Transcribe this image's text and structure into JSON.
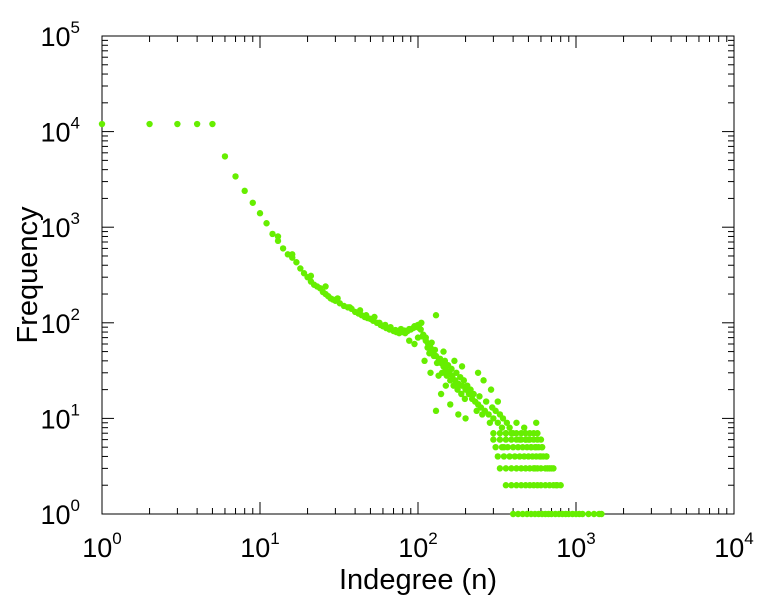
{
  "chart_data": {
    "type": "scatter",
    "title": "",
    "xlabel": "Indegree (n)",
    "ylabel": "Frequency",
    "xscale": "log",
    "yscale": "log",
    "xlim": [
      1,
      10000
    ],
    "ylim": [
      1,
      100000
    ],
    "x_ticks": [
      1,
      10,
      100,
      1000,
      10000
    ],
    "y_ticks": [
      1,
      10,
      100,
      1000,
      10000,
      100000
    ],
    "tick_base": "10",
    "x_tick_exponents": [
      "0",
      "1",
      "2",
      "3",
      "4"
    ],
    "y_tick_exponents": [
      "0",
      "1",
      "2",
      "3",
      "4",
      "5"
    ],
    "grid": false,
    "legend": "none",
    "marker_color": "#66ee00",
    "series": [
      {
        "points": [
          [
            1,
            12000
          ],
          [
            2,
            12000
          ],
          [
            3,
            12000
          ],
          [
            4,
            12000
          ],
          [
            5,
            12000
          ],
          [
            6,
            5500
          ],
          [
            7,
            3400
          ],
          [
            8,
            2400
          ],
          [
            9,
            1800
          ],
          [
            10,
            1400
          ],
          [
            11,
            1100
          ],
          [
            12,
            850
          ],
          [
            13,
            720
          ],
          [
            14,
            600
          ],
          [
            15,
            520
          ],
          [
            16,
            480
          ],
          [
            17,
            430
          ],
          [
            18,
            370
          ],
          [
            19,
            330
          ],
          [
            20,
            300
          ],
          [
            21,
            270
          ],
          [
            22,
            250
          ],
          [
            23,
            240
          ],
          [
            24,
            230
          ],
          [
            25,
            210
          ],
          [
            26,
            200
          ],
          [
            27,
            190
          ],
          [
            28,
            180
          ],
          [
            29,
            175
          ],
          [
            30,
            170
          ],
          [
            32,
            160
          ],
          [
            34,
            150
          ],
          [
            36,
            145
          ],
          [
            38,
            140
          ],
          [
            40,
            130
          ],
          [
            42,
            125
          ],
          [
            44,
            120
          ],
          [
            46,
            115
          ],
          [
            48,
            112
          ],
          [
            50,
            110
          ],
          [
            52,
            105
          ],
          [
            55,
            100
          ],
          [
            58,
            95
          ],
          [
            60,
            92
          ],
          [
            63,
            88
          ],
          [
            66,
            85
          ],
          [
            70,
            82
          ],
          [
            73,
            80
          ],
          [
            76,
            78
          ],
          [
            80,
            80
          ],
          [
            83,
            78
          ],
          [
            86,
            82
          ],
          [
            90,
            85
          ],
          [
            93,
            88
          ],
          [
            96,
            90
          ],
          [
            100,
            95
          ],
          [
            104,
            85
          ],
          [
            108,
            75
          ],
          [
            112,
            65
          ],
          [
            116,
            60
          ],
          [
            120,
            55
          ],
          [
            125,
            50
          ],
          [
            130,
            45
          ],
          [
            135,
            40
          ],
          [
            140,
            38
          ],
          [
            145,
            35
          ],
          [
            150,
            32
          ],
          [
            158,
            30
          ],
          [
            165,
            28
          ],
          [
            172,
            25
          ],
          [
            180,
            23
          ],
          [
            190,
            22
          ],
          [
            200,
            20
          ],
          [
            210,
            18
          ],
          [
            220,
            16
          ],
          [
            230,
            15
          ],
          [
            240,
            14
          ],
          [
            250,
            13
          ],
          [
            265,
            12
          ],
          [
            280,
            11
          ],
          [
            300,
            10
          ],
          [
            320,
            9
          ],
          [
            340,
            8
          ],
          [
            360,
            7
          ],
          [
            400,
            7
          ],
          [
            480,
            6
          ],
          [
            520,
            5
          ],
          [
            560,
            5
          ],
          [
            600,
            4
          ],
          [
            650,
            4
          ],
          [
            470,
            8
          ],
          [
            420,
            9
          ],
          [
            560,
            9
          ],
          [
            350,
            5
          ],
          [
            550,
            3
          ],
          [
            700,
            3
          ],
          [
            750,
            2
          ],
          [
            800,
            2
          ],
          [
            900,
            1
          ],
          [
            1000,
            1
          ],
          [
            1200,
            1
          ],
          [
            1450,
            1
          ],
          [
            13,
            800
          ],
          [
            16,
            520
          ],
          [
            21,
            310
          ],
          [
            26,
            240
          ],
          [
            31,
            180
          ],
          [
            37,
            145
          ],
          [
            43,
            135
          ],
          [
            47,
            120
          ],
          [
            53,
            115
          ],
          [
            57,
            100
          ],
          [
            62,
            95
          ],
          [
            67,
            90
          ],
          [
            72,
            84
          ],
          [
            78,
            86
          ],
          [
            82,
            83
          ],
          [
            88,
            86
          ],
          [
            95,
            92
          ],
          [
            102,
            88
          ],
          [
            107,
            72
          ],
          [
            112,
            70
          ],
          [
            115,
            55
          ],
          [
            118,
            48
          ],
          [
            122,
            62
          ],
          [
            126,
            45
          ],
          [
            128,
            52
          ],
          [
            132,
            38
          ],
          [
            138,
            42
          ],
          [
            142,
            30
          ],
          [
            148,
            40
          ],
          [
            152,
            28
          ],
          [
            155,
            36
          ],
          [
            160,
            25
          ],
          [
            163,
            33
          ],
          [
            168,
            22
          ],
          [
            175,
            30
          ],
          [
            178,
            20
          ],
          [
            185,
            27
          ],
          [
            188,
            18
          ],
          [
            195,
            25
          ],
          [
            198,
            16
          ],
          [
            205,
            22
          ],
          [
            215,
            20
          ],
          [
            225,
            18
          ],
          [
            235,
            12
          ],
          [
            245,
            17
          ],
          [
            255,
            11
          ],
          [
            270,
            15
          ],
          [
            285,
            9
          ],
          [
            295,
            13
          ],
          [
            310,
            12
          ],
          [
            330,
            11
          ],
          [
            345,
            10
          ],
          [
            365,
            9
          ],
          [
            380,
            8
          ],
          [
            440,
            6
          ],
          [
            500,
            6
          ],
          [
            610,
            5
          ],
          [
            660,
            3
          ],
          [
            130,
            12
          ],
          [
            140,
            18
          ],
          [
            160,
            14
          ],
          [
            180,
            11
          ],
          [
            200,
            10
          ],
          [
            120,
            30
          ],
          [
            135,
            28
          ],
          [
            150,
            22
          ],
          [
            110,
            40
          ],
          [
            240,
            30
          ],
          [
            260,
            25
          ],
          [
            290,
            20
          ],
          [
            320,
            15
          ],
          [
            130,
            120
          ],
          [
            105,
            100
          ],
          [
            95,
            60
          ],
          [
            88,
            65
          ],
          [
            100,
            70
          ],
          [
            145,
            50
          ],
          [
            170,
            40
          ],
          [
            190,
            35
          ]
        ]
      },
      {
        "points": [
          [
            300,
            7
          ],
          [
            330,
            7
          ],
          [
            360,
            7
          ],
          [
            390,
            7
          ],
          [
            420,
            7
          ],
          [
            450,
            7
          ],
          [
            480,
            7
          ],
          [
            510,
            7
          ],
          [
            540,
            7
          ],
          [
            570,
            7
          ],
          [
            300,
            6
          ],
          [
            330,
            6
          ],
          [
            360,
            6
          ],
          [
            390,
            6
          ],
          [
            420,
            6
          ],
          [
            450,
            6
          ],
          [
            480,
            6
          ],
          [
            510,
            6
          ],
          [
            540,
            6
          ],
          [
            570,
            6
          ],
          [
            600,
            6
          ],
          [
            310,
            5
          ],
          [
            340,
            5
          ],
          [
            370,
            5
          ],
          [
            400,
            5
          ],
          [
            430,
            5
          ],
          [
            460,
            5
          ],
          [
            490,
            5
          ],
          [
            520,
            5
          ],
          [
            550,
            5
          ],
          [
            580,
            5
          ],
          [
            610,
            5
          ],
          [
            320,
            4
          ],
          [
            350,
            4
          ],
          [
            380,
            4
          ],
          [
            410,
            4
          ],
          [
            440,
            4
          ],
          [
            470,
            4
          ],
          [
            500,
            4
          ],
          [
            530,
            4
          ],
          [
            560,
            4
          ],
          [
            590,
            4
          ],
          [
            620,
            4
          ],
          [
            650,
            4
          ],
          [
            330,
            3
          ],
          [
            360,
            3
          ],
          [
            390,
            3
          ],
          [
            420,
            3
          ],
          [
            450,
            3
          ],
          [
            480,
            3
          ],
          [
            510,
            3
          ],
          [
            540,
            3
          ],
          [
            570,
            3
          ],
          [
            600,
            3
          ],
          [
            640,
            3
          ],
          [
            680,
            3
          ],
          [
            720,
            3
          ],
          [
            360,
            2
          ],
          [
            390,
            2
          ],
          [
            420,
            2
          ],
          [
            450,
            2
          ],
          [
            480,
            2
          ],
          [
            510,
            2
          ],
          [
            540,
            2
          ],
          [
            570,
            2
          ],
          [
            600,
            2
          ],
          [
            640,
            2
          ],
          [
            680,
            2
          ],
          [
            720,
            2
          ],
          [
            760,
            2
          ],
          [
            400,
            1
          ],
          [
            430,
            1
          ],
          [
            460,
            1
          ],
          [
            490,
            1
          ],
          [
            520,
            1
          ],
          [
            550,
            1
          ],
          [
            580,
            1
          ],
          [
            610,
            1
          ],
          [
            640,
            1
          ],
          [
            670,
            1
          ],
          [
            700,
            1
          ],
          [
            740,
            1
          ],
          [
            780,
            1
          ],
          [
            820,
            1
          ],
          [
            860,
            1
          ],
          [
            950,
            1
          ],
          [
            1050,
            1
          ],
          [
            1100,
            1
          ],
          [
            1300,
            1
          ],
          [
            1400,
            1
          ]
        ]
      }
    ]
  }
}
